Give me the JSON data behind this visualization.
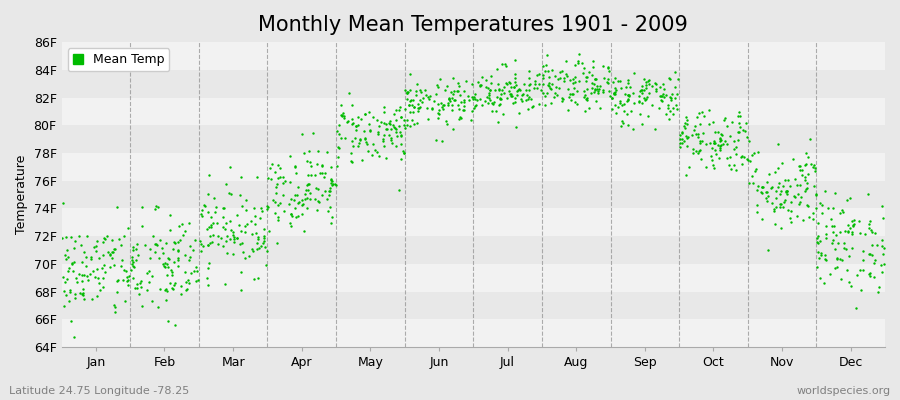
{
  "title": "Monthly Mean Temperatures 1901 - 2009",
  "ylabel": "Temperature",
  "xlabel_labels": [
    "Jan",
    "Feb",
    "Mar",
    "Apr",
    "May",
    "Jun",
    "Jul",
    "Aug",
    "Sep",
    "Oct",
    "Nov",
    "Dec"
  ],
  "ylim": [
    64,
    86
  ],
  "ytick_labels": [
    "64F",
    "66F",
    "68F",
    "70F",
    "72F",
    "74F",
    "76F",
    "78F",
    "80F",
    "82F",
    "84F",
    "86F"
  ],
  "ytick_values": [
    64,
    66,
    68,
    70,
    72,
    74,
    76,
    78,
    80,
    82,
    84,
    86
  ],
  "dot_color": "#00BB00",
  "bg_color": "#E8E8E8",
  "stripe_color": "#F2F2F2",
  "dashed_line_color": "#999999",
  "legend_label": "Mean Temp",
  "footer_left": "Latitude 24.75 Longitude -78.25",
  "footer_right": "worldspecies.org",
  "monthly_means": [
    69.5,
    69.8,
    72.5,
    75.5,
    79.5,
    81.5,
    82.5,
    82.8,
    82.0,
    79.0,
    75.5,
    71.5
  ],
  "monthly_stds": [
    1.8,
    2.0,
    1.6,
    1.5,
    1.2,
    0.9,
    0.9,
    0.9,
    1.0,
    1.2,
    1.6,
    1.8
  ],
  "n_years": 109,
  "title_fontsize": 15,
  "label_fontsize": 9,
  "tick_fontsize": 9,
  "footer_fontsize": 8
}
